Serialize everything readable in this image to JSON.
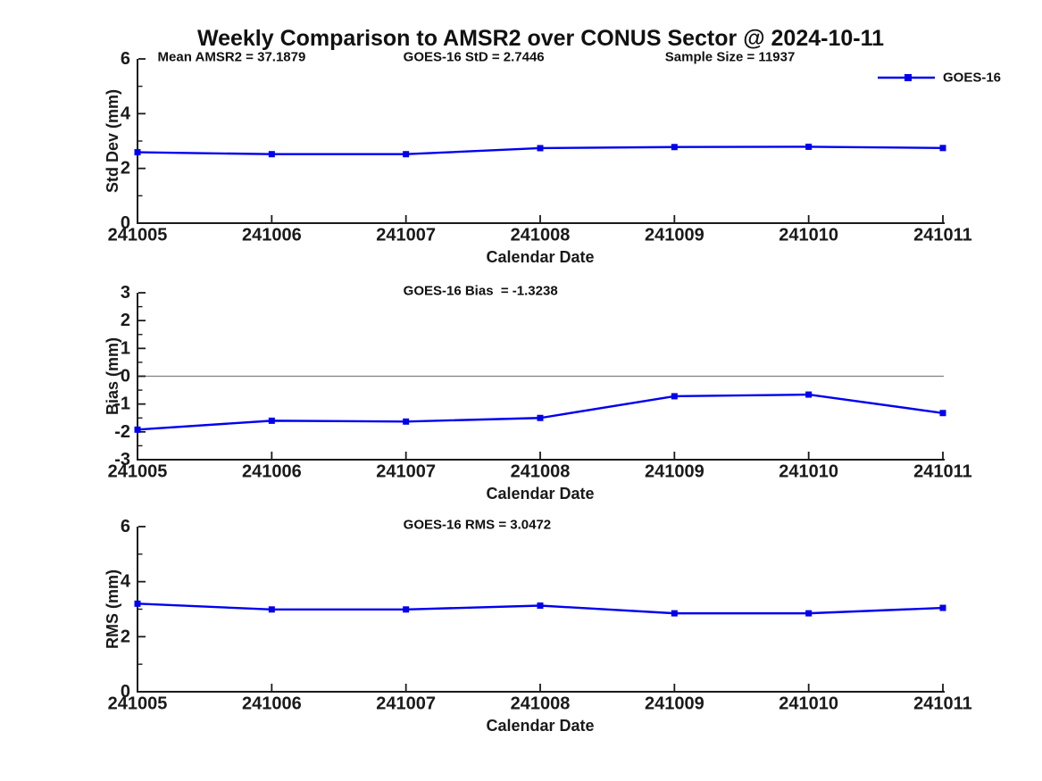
{
  "title": "Weekly Comparison to AMSR2 over CONUS Sector @ 2024-10-11",
  "legend": {
    "label": "GOES-16",
    "position": "top-right"
  },
  "colors": {
    "series": "#0000EE",
    "zero_line": "#808080",
    "axis": "#1a1a1a",
    "text": "#111111",
    "background": "#FFFFFF"
  },
  "chart_data": [
    {
      "type": "line",
      "title": "",
      "ylabel": "Std Dev (mm)",
      "xlabel": "Calendar Date",
      "categories": [
        "241005",
        "241006",
        "241007",
        "241008",
        "241009",
        "241010",
        "241011"
      ],
      "series": [
        {
          "name": "GOES-16",
          "values": [
            2.59,
            2.52,
            2.52,
            2.74,
            2.78,
            2.79,
            2.7446
          ]
        }
      ],
      "ylim": [
        0,
        6
      ],
      "yticks": [
        0,
        2,
        4,
        6
      ],
      "yticks_minor": [
        1,
        3,
        5
      ],
      "annotations": [
        "Mean AMSR2 = 37.1879",
        "GOES-16 StD = 2.7446",
        "Sample Size = 11937"
      ],
      "zero_line": false,
      "grid": false,
      "legend_entries": [
        "GOES-16"
      ],
      "marker": "square"
    },
    {
      "type": "line",
      "title": "",
      "ylabel": "Bias (mm)",
      "xlabel": "Calendar Date",
      "categories": [
        "241005",
        "241006",
        "241007",
        "241008",
        "241009",
        "241010",
        "241011"
      ],
      "series": [
        {
          "name": "GOES-16",
          "values": [
            -1.92,
            -1.6,
            -1.63,
            -1.5,
            -0.72,
            -0.66,
            -1.3238
          ]
        }
      ],
      "ylim": [
        -3,
        3
      ],
      "yticks": [
        -3,
        -2,
        -1,
        0,
        1,
        2,
        3
      ],
      "yticks_minor": [
        -2.5,
        -1.5,
        -0.5,
        0.5,
        1.5,
        2.5
      ],
      "annotations": [
        "GOES-16 Bias  = -1.3238"
      ],
      "zero_line": true,
      "grid": false,
      "marker": "square"
    },
    {
      "type": "line",
      "title": "",
      "ylabel": "RMS (mm)",
      "xlabel": "Calendar Date",
      "categories": [
        "241005",
        "241006",
        "241007",
        "241008",
        "241009",
        "241010",
        "241011"
      ],
      "series": [
        {
          "name": "GOES-16",
          "values": [
            3.2,
            2.99,
            2.99,
            3.13,
            2.85,
            2.85,
            3.0472
          ]
        }
      ],
      "ylim": [
        0,
        6
      ],
      "yticks": [
        0,
        2,
        4,
        6
      ],
      "yticks_minor": [
        1,
        3,
        5
      ],
      "annotations": [
        "GOES-16 RMS = 3.0472"
      ],
      "zero_line": false,
      "grid": false,
      "marker": "square"
    }
  ]
}
